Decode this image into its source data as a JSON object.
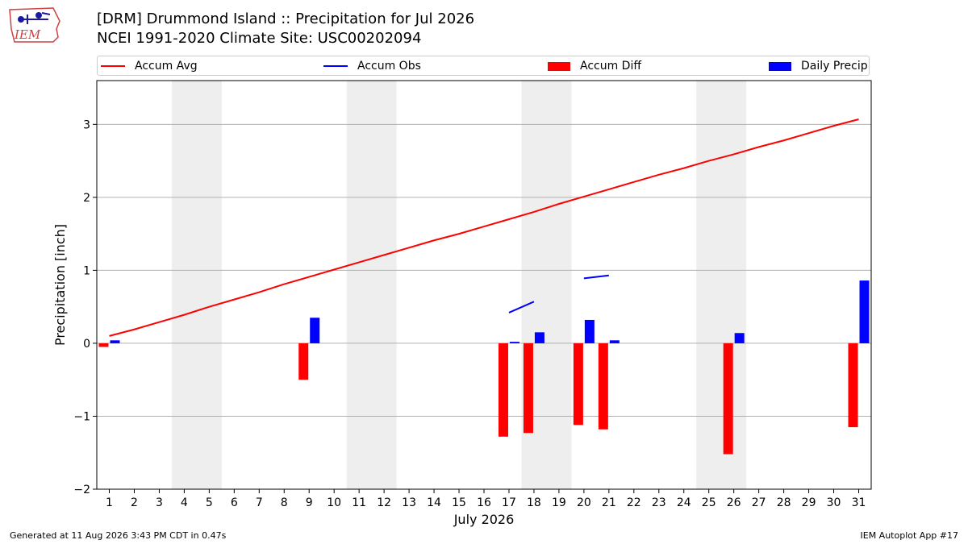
{
  "logo": {
    "text": "IEM",
    "colors": {
      "outline": "#d04040",
      "mark": "#1a1aa0"
    }
  },
  "header": {
    "title_line1": "[DRM] Drummond Island :: Precipitation for Jul 2026",
    "title_line2": "NCEI 1991-2020 Climate Site: USC00202094"
  },
  "legend": {
    "placement": "top",
    "items": [
      {
        "label": "Accum Avg",
        "kind": "line",
        "color": "#ff0000"
      },
      {
        "label": "Accum Obs",
        "kind": "line",
        "color": "#0000ff"
      },
      {
        "label": "Accum Diff",
        "kind": "bar",
        "color": "#ff0000"
      },
      {
        "label": "Daily Precip",
        "kind": "bar",
        "color": "#0000ff"
      }
    ]
  },
  "chart_data": {
    "type": "bar",
    "title": "[DRM] Drummond Island :: Precipitation for Jul 2026",
    "subtitle": "NCEI 1991-2020 Climate Site: USC00202094",
    "xlabel": "July 2026",
    "ylabel": "Precipitation [inch]",
    "xlim": [
      0.5,
      31.5
    ],
    "ylim": [
      -2.0,
      3.6
    ],
    "yticks": [
      -2,
      -1,
      0,
      1,
      2,
      3
    ],
    "ytick_labels": [
      "−2",
      "−1",
      "0",
      "1",
      "2",
      "3"
    ],
    "grid": "horizontal",
    "weekend_shading": [
      [
        3.5,
        5.5
      ],
      [
        10.5,
        12.5
      ],
      [
        17.5,
        19.5
      ],
      [
        24.5,
        26.5
      ]
    ],
    "days": [
      1,
      2,
      3,
      4,
      5,
      6,
      7,
      8,
      9,
      10,
      11,
      12,
      13,
      14,
      15,
      16,
      17,
      18,
      19,
      20,
      21,
      22,
      23,
      24,
      25,
      26,
      27,
      28,
      29,
      30,
      31
    ],
    "series": [
      {
        "name": "Accum Avg",
        "type": "line",
        "color": "#ff0000",
        "x": [
          1,
          2,
          3,
          4,
          5,
          6,
          7,
          8,
          9,
          10,
          11,
          12,
          13,
          14,
          15,
          16,
          17,
          18,
          19,
          20,
          21,
          22,
          23,
          24,
          25,
          26,
          27,
          28,
          29,
          30,
          31
        ],
        "values": [
          0.1,
          0.19,
          0.29,
          0.39,
          0.5,
          0.6,
          0.7,
          0.81,
          0.91,
          1.01,
          1.11,
          1.21,
          1.31,
          1.41,
          1.5,
          1.6,
          1.7,
          1.8,
          1.91,
          2.01,
          2.11,
          2.21,
          2.31,
          2.4,
          2.5,
          2.59,
          2.69,
          2.78,
          2.88,
          2.98,
          3.07
        ]
      },
      {
        "name": "Accum Obs",
        "type": "line",
        "color": "#0000ff",
        "segments": [
          {
            "x": [
              17,
              18
            ],
            "values": [
              0.42,
              0.57
            ]
          },
          {
            "x": [
              20,
              21
            ],
            "values": [
              0.89,
              0.93
            ]
          }
        ]
      },
      {
        "name": "Accum Diff",
        "type": "bar",
        "color": "#ff0000",
        "x": [
          1,
          9,
          17,
          18,
          20,
          21,
          26,
          31
        ],
        "values": [
          -0.05,
          -0.5,
          -1.28,
          -1.23,
          -1.12,
          -1.18,
          -1.52,
          -1.15
        ]
      },
      {
        "name": "Daily Precip",
        "type": "bar",
        "color": "#0000ff",
        "x": [
          1,
          9,
          17,
          18,
          20,
          21,
          26,
          31
        ],
        "values": [
          0.04,
          0.35,
          0.02,
          0.15,
          0.32,
          0.04,
          0.14,
          0.86
        ]
      }
    ]
  },
  "footer": {
    "generated": "Generated at 11 Aug 2026 3:43 PM CDT in 0.47s",
    "app": "IEM Autoplot App #17"
  }
}
